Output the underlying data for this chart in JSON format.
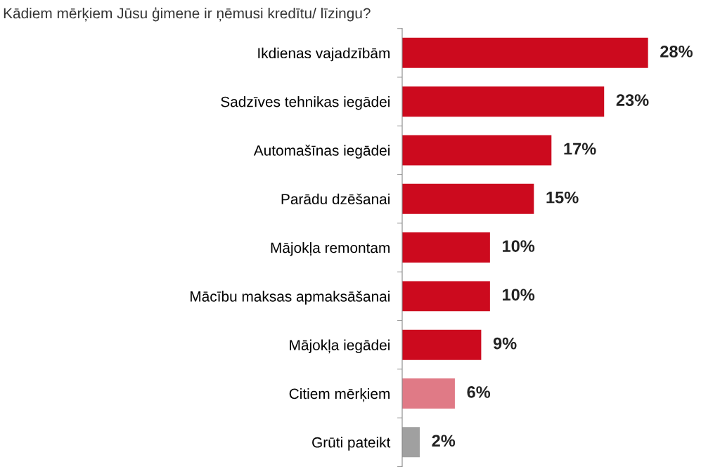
{
  "chart_data": {
    "type": "bar",
    "orientation": "horizontal",
    "title": "Kādiem mērķiem Jūsu ģimene ir ņēmusi kredītu/ līzingu?",
    "categories": [
      "Ikdienas vajadzībām",
      "Sadzīves tehnikas iegādei",
      "Automašīnas iegādei",
      "Parādu dzēšanai",
      "Mājokļa remontam",
      "Mācību maksas apmaksāšanai",
      "Mājokļa iegādei",
      "Citiem mērķiem",
      "Grūti pateikt"
    ],
    "values": [
      28,
      23,
      17,
      15,
      10,
      10,
      9,
      6,
      2
    ],
    "value_labels": [
      "28%",
      "23%",
      "17%",
      "15%",
      "10%",
      "10%",
      "9%",
      "6%",
      "2%"
    ],
    "colors": [
      "#cc0a1e",
      "#cc0a1e",
      "#cc0a1e",
      "#cc0a1e",
      "#cc0a1e",
      "#cc0a1e",
      "#cc0a1e",
      "#e07a86",
      "#a0a0a0"
    ],
    "grid": false,
    "legend": false
  }
}
